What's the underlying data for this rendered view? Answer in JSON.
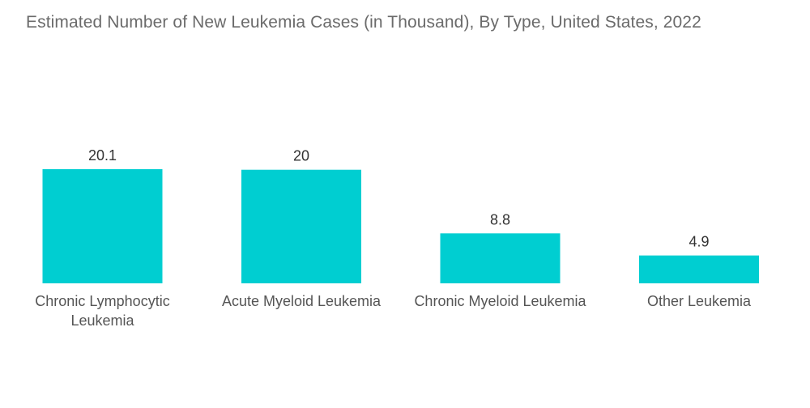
{
  "title": "Estimated Number of New Leukemia Cases (in Thousand), By Type, United States, 2022",
  "colors": {
    "bar": "#00CED1",
    "title": "#6b6b6b",
    "category_text": "#555555",
    "value_text": "#333333"
  },
  "chart_data": {
    "type": "bar",
    "title": "Estimated Number of New Leukemia Cases (in Thousand), By Type, United States, 2022",
    "categories": [
      [
        "Chronic Lymphocytic",
        "Leukemia"
      ],
      [
        "Acute Myeloid Leukemia"
      ],
      [
        "Chronic Myeloid Leukemia"
      ],
      [
        "Other Leukemia"
      ]
    ],
    "values": [
      20.1,
      20,
      8.8,
      4.9
    ],
    "value_labels": [
      "20.1",
      "20",
      "8.8",
      "4.9"
    ],
    "xlabel": "",
    "ylabel": "",
    "ylim": [
      0,
      20.1
    ],
    "grid": false,
    "legend": "none"
  }
}
